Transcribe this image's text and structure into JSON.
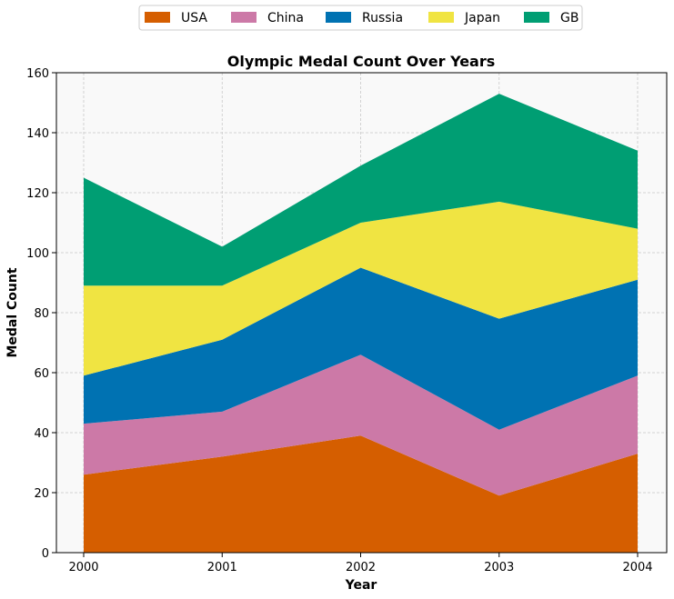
{
  "chart_data": {
    "type": "area",
    "stacked": true,
    "title": "Olympic Medal Count Over Years",
    "xlabel": "Year",
    "ylabel": "Medal Count",
    "x": [
      2000,
      2001,
      2002,
      2003,
      2004
    ],
    "x_tick_labels": [
      "2000",
      "2001",
      "2002",
      "2003",
      "2004"
    ],
    "ylim": [
      0,
      160
    ],
    "y_ticks": [
      0,
      20,
      40,
      60,
      80,
      100,
      120,
      140,
      160
    ],
    "y_tick_labels": [
      "0",
      "20",
      "40",
      "60",
      "80",
      "100",
      "120",
      "140",
      "160"
    ],
    "grid": true,
    "legend_position": "top-center",
    "series": [
      {
        "name": "USA",
        "color": "#d55e00",
        "values": [
          26,
          32,
          39,
          19,
          33
        ]
      },
      {
        "name": "China",
        "color": "#cc79a7",
        "values": [
          17,
          15,
          27,
          22,
          26
        ]
      },
      {
        "name": "Russia",
        "color": "#0072b2",
        "values": [
          16,
          24,
          29,
          37,
          32
        ]
      },
      {
        "name": "Japan",
        "color": "#f0e442",
        "values": [
          30,
          18,
          15,
          39,
          17
        ]
      },
      {
        "name": "GB",
        "color": "#009e73",
        "values": [
          36,
          13,
          19,
          36,
          26
        ]
      }
    ]
  }
}
